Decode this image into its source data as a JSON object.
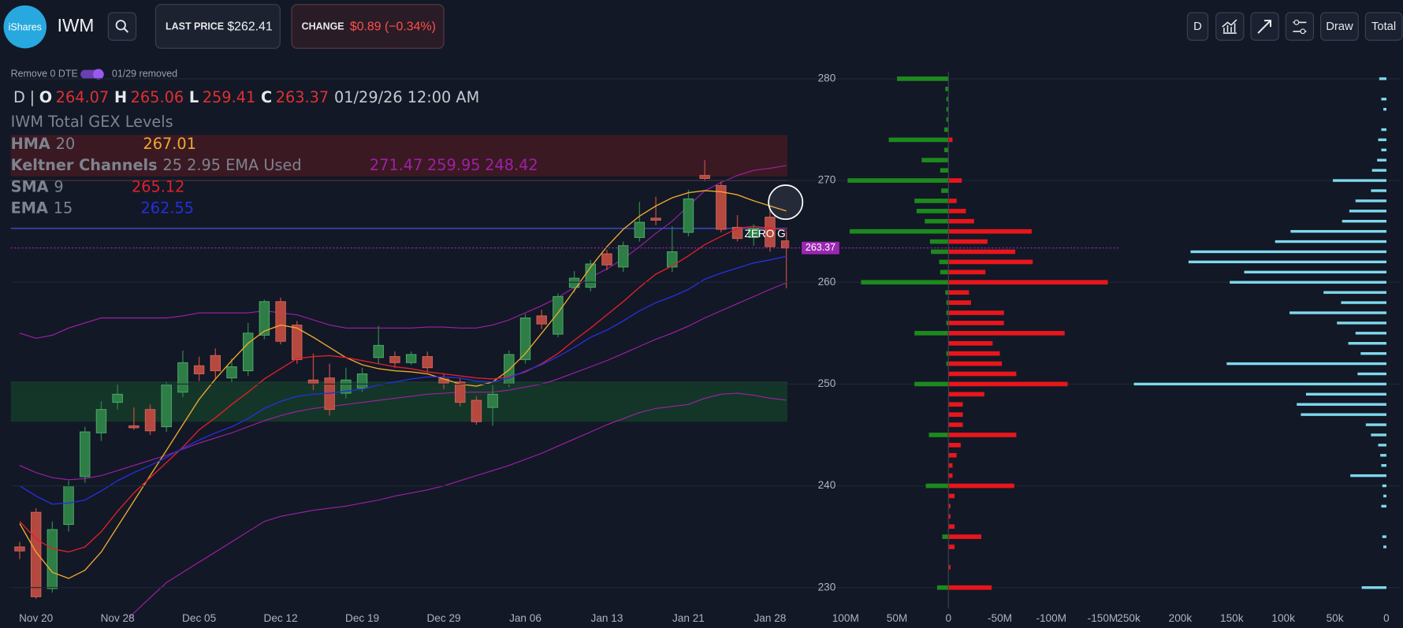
{
  "header": {
    "logo": "iShares",
    "ticker": "IWM",
    "last_price_label": "LAST PRICE",
    "last_price": "$262.41",
    "change_label": "CHANGE",
    "change": "$0.89 (−0.34%)",
    "buttons": [
      "D",
      "Draw",
      "Total"
    ]
  },
  "toggle": {
    "label": "Remove 0 DTE",
    "status": "01/29 removed"
  },
  "legend": {
    "interval": "D",
    "separator": "|",
    "open": "O",
    "high": "H",
    "low": "L",
    "close": "C",
    "datetime": "01/29/26 12:00 AM"
  },
  "chart_data": [
    {
      "type": "candlestick",
      "title": "IWM Total GEX Levels",
      "categories": [
        null,
        "Nov 20",
        null,
        null,
        null,
        null,
        "Nov 28",
        null,
        null,
        null,
        null,
        "Dec 05",
        null,
        null,
        null,
        null,
        "Dec 12",
        null,
        null,
        null,
        null,
        "Dec 19",
        null,
        null,
        null,
        null,
        "Dec 29",
        null,
        null,
        null,
        null,
        "Jan 06",
        null,
        null,
        null,
        null,
        "Jan 13",
        null,
        null,
        null,
        null,
        "Jan 21",
        null,
        null,
        null,
        null,
        "Jan 28",
        null
      ],
      "open": [
        234.0,
        237.4,
        229.9,
        236.2,
        240.9,
        245.2,
        248.2,
        245.9,
        247.5,
        245.8,
        249.2,
        251.8,
        252.8,
        250.6,
        251.3,
        254.8,
        258.1,
        255.8,
        250.4,
        250.6,
        249.1,
        249.6,
        252.6,
        252.7,
        252.1,
        252.7,
        250.5,
        250.2,
        248.4,
        247.7,
        250.0,
        252.4,
        256.7,
        254.9,
        259.5,
        259.5,
        262.8,
        261.5,
        264.4,
        266.3,
        261.5,
        264.9,
        270.5,
        269.5,
        265.4,
        264.4,
        266.4,
        264.07
      ],
      "high": [
        234.5,
        237.8,
        236.5,
        240.5,
        245.8,
        248.3,
        250.0,
        247.7,
        248.0,
        250.2,
        253.3,
        252.7,
        253.5,
        252.5,
        256.0,
        258.3,
        258.5,
        256.2,
        253.0,
        252.0,
        251.6,
        251.6,
        255.7,
        253.2,
        253.2,
        253.2,
        251.0,
        250.6,
        248.8,
        249.9,
        253.3,
        256.9,
        257.3,
        258.9,
        261.1,
        262.2,
        263.2,
        264.0,
        267.9,
        268.4,
        265.5,
        269.1,
        272.0,
        269.9,
        266.6,
        265.7,
        267.1,
        265.06
      ],
      "low": [
        232.8,
        228.9,
        229.5,
        235.5,
        240.3,
        244.4,
        247.5,
        245.5,
        245.0,
        245.3,
        248.7,
        250.3,
        250.6,
        250.2,
        250.8,
        254.4,
        253.9,
        252.0,
        249.4,
        246.9,
        248.6,
        249.2,
        252.0,
        251.6,
        251.9,
        251.2,
        249.5,
        247.8,
        246.0,
        245.9,
        249.7,
        252.0,
        255.4,
        254.6,
        259.0,
        259.1,
        261.2,
        261.0,
        264.0,
        265.6,
        261.0,
        264.5,
        269.9,
        264.9,
        264.0,
        263.6,
        263.0,
        259.41
      ],
      "close": [
        233.6,
        229.1,
        235.7,
        240.0,
        245.3,
        247.5,
        249.0,
        245.7,
        245.4,
        249.9,
        252.1,
        251.0,
        251.3,
        251.7,
        255.0,
        258.1,
        254.2,
        252.4,
        250.1,
        247.5,
        250.4,
        251.0,
        253.8,
        252.1,
        252.9,
        251.6,
        250.1,
        248.2,
        246.3,
        249.0,
        252.9,
        256.5,
        255.9,
        258.6,
        260.4,
        261.8,
        261.7,
        263.6,
        265.9,
        266.1,
        263.0,
        268.2,
        270.2,
        265.2,
        264.3,
        265.3,
        263.5,
        263.37
      ],
      "up_color": "#2e7d46",
      "down_color": "#b5483f",
      "lines": [
        {
          "name": "HMA",
          "params": "20",
          "color": "#f0a830",
          "values": [
            236.3,
            233.5,
            231.5,
            230.9,
            231.7,
            233.5,
            236,
            238.5,
            241,
            243.5,
            246,
            248.5,
            250.5,
            252.3,
            254.0,
            255.2,
            255.8,
            255.5,
            254.6,
            253.6,
            252.6,
            251.9,
            251.5,
            251.3,
            251.2,
            251.0,
            250.5,
            250.0,
            249.8,
            250.2,
            251.4,
            253.0,
            255.0,
            257.0,
            259.2,
            261.5,
            263.5,
            265.2,
            266.5,
            267.5,
            268.3,
            268.8,
            269.0,
            268.9,
            268.6,
            268.0,
            267.5,
            267.01
          ]
        },
        {
          "name": "SMA",
          "params": "9",
          "color": "#e0202a",
          "values": [
            236.5,
            234.8,
            233.8,
            233.5,
            234.0,
            235.5,
            237.5,
            239.3,
            240.8,
            242.3,
            243.8,
            245.5,
            246.7,
            248.0,
            249.2,
            250.5,
            251.5,
            252.5,
            252.7,
            252.8,
            252.6,
            252.3,
            252.0,
            251.7,
            251.5,
            251.2,
            251.0,
            250.8,
            250.6,
            250.5,
            250.7,
            251.2,
            252.0,
            253.0,
            254.3,
            255.5,
            256.8,
            258.1,
            259.5,
            260.8,
            261.6,
            262.6,
            263.7,
            264.5,
            265.3,
            265.5,
            265.3,
            265.12
          ]
        },
        {
          "name": "EMA",
          "params": "15",
          "color": "#2630d8",
          "values": [
            240.0,
            239.0,
            238.2,
            238.3,
            238.6,
            239.5,
            240.5,
            241.3,
            242.0,
            242.8,
            243.7,
            244.5,
            245.2,
            245.8,
            246.6,
            247.6,
            248.3,
            248.8,
            249.0,
            249.1,
            249.3,
            249.5,
            249.9,
            250.2,
            250.5,
            250.7,
            250.7,
            250.6,
            250.3,
            250.2,
            250.6,
            251.3,
            251.9,
            252.7,
            253.6,
            254.6,
            255.3,
            256.2,
            257.2,
            258.0,
            258.6,
            259.3,
            260.3,
            260.9,
            261.4,
            261.9,
            262.2,
            262.55
          ]
        }
      ],
      "keltner": {
        "name": "Keltner Channels",
        "params": "25 2.95 EMA Used",
        "color": "#a11fa8",
        "upper": [
          255,
          254.5,
          254.8,
          255.5,
          256,
          256.5,
          256.5,
          256.5,
          256.5,
          256.5,
          256.7,
          257,
          257,
          257,
          257,
          257.2,
          257,
          256.8,
          256.3,
          255.8,
          255.5,
          255.5,
          255.5,
          255.5,
          255.5,
          255.6,
          255.6,
          255.5,
          255.5,
          255.8,
          256.3,
          257,
          257.7,
          258.5,
          259.5,
          260.5,
          261.3,
          262.3,
          263.5,
          264.8,
          266,
          267.5,
          269,
          269.8,
          270.5,
          271,
          271.2,
          271.47
        ],
        "middle": [
          242,
          241.3,
          240.8,
          240.6,
          240.7,
          241,
          241.5,
          242,
          242.5,
          243,
          243.6,
          244.2,
          244.7,
          245.2,
          245.8,
          246.4,
          246.9,
          247.3,
          247.6,
          247.8,
          248,
          248.2,
          248.4,
          248.6,
          248.8,
          249,
          249.1,
          249.2,
          249.2,
          249.2,
          249.4,
          249.7,
          250,
          250.5,
          251.1,
          251.7,
          252.3,
          253,
          253.7,
          254.4,
          255,
          255.7,
          256.5,
          257.2,
          257.9,
          258.6,
          259.3,
          259.95
        ],
        "lower": [
          224,
          223.5,
          223,
          223,
          223.5,
          224.5,
          226,
          227.5,
          229,
          230.5,
          231.5,
          232.5,
          233.5,
          234.5,
          235.5,
          236.5,
          237,
          237.3,
          237.6,
          237.8,
          238,
          238.3,
          238.6,
          239,
          239.3,
          239.6,
          240,
          240.5,
          241,
          241.5,
          242,
          242.6,
          243.2,
          243.9,
          244.6,
          245.3,
          246,
          246.6,
          247.2,
          247.6,
          247.8,
          248,
          248.6,
          249,
          249.1,
          248.9,
          248.6,
          248.42
        ]
      },
      "levels": [
        {
          "value": 270,
          "color": "#d84a3a"
        },
        {
          "value": 265.3,
          "color": "#3b50c8"
        }
      ],
      "zones": [
        {
          "from": 270.4,
          "to": 274.4,
          "color": "#4a1a22"
        },
        {
          "from": 246.3,
          "to": 250.2,
          "color": "#15402a"
        }
      ],
      "annotation": {
        "text": "ZERO G",
        "value": 264.7
      },
      "tag_color": "#9b27b0",
      "ylim": [
        227,
        281
      ],
      "yticks": [
        230,
        240,
        250,
        260,
        270,
        280
      ],
      "grid": true
    },
    {
      "type": "bar",
      "orientation": "horizontal",
      "y": [
        280,
        279,
        278,
        277,
        276,
        275,
        274,
        273,
        272,
        271,
        270,
        269,
        268,
        267,
        266,
        265,
        264,
        263,
        262,
        261,
        260,
        259,
        258,
        257,
        256,
        255,
        254,
        253,
        252,
        251,
        250,
        249,
        248,
        247,
        246,
        245,
        244,
        243,
        242,
        241,
        240,
        239,
        238,
        237,
        236,
        235,
        234,
        233,
        232,
        231,
        230,
        229
      ],
      "series": [
        {
          "color": "#1d8a1d",
          "values": [
            50000000.0,
            3000000.0,
            2000000.0,
            2000000.0,
            2000000.0,
            4000000.0,
            58000000.0,
            4000000.0,
            26000000.0,
            8000000.0,
            98000000.0,
            7000000.0,
            33000000.0,
            31000000.0,
            23000000.0,
            96000000.0,
            18000000.0,
            17000000.0,
            9000000.0,
            8000000.0,
            85000000.0,
            3000000.0,
            2000000.0,
            2000000.0,
            2000000.0,
            33000000.0,
            0,
            2000000.0,
            2000000.0,
            0,
            33000000.0,
            0,
            0,
            0,
            0,
            19000000.0,
            0,
            0,
            0,
            0,
            22000000.0,
            0,
            0,
            0,
            0,
            6000000.0,
            0,
            0,
            0,
            0,
            11000000.0,
            0
          ]
        },
        {
          "color": "#e8161b",
          "values": [
            0,
            0,
            0,
            0,
            0,
            0,
            -4000000.0,
            0,
            0,
            0,
            -13000000.0,
            0,
            -8000000.0,
            -17000000.0,
            -25000000.0,
            -81000000.0,
            -38000000.0,
            -65000000.0,
            -82000000.0,
            -36000000.0,
            -155000000.0,
            -20000000.0,
            -22000000.0,
            -54000000.0,
            -54000000.0,
            -113000000.0,
            -43000000.0,
            -50000000.0,
            -52000000.0,
            -66000000.0,
            -116000000.0,
            -35000000.0,
            -14000000.0,
            -14000000.0,
            -14000000.0,
            -66000000.0,
            -12000000.0,
            -8000000.0,
            -4000000.0,
            -4000000.0,
            -64000000.0,
            -6000000.0,
            -2000000.0,
            -2000000.0,
            -6000000.0,
            -32000000.0,
            -6000000.0,
            0,
            -2000000.0,
            0,
            -42000000.0,
            0
          ]
        }
      ],
      "xlim": [
        100000000.0,
        -161000000.0
      ],
      "xticks": [
        {
          "value": 100000000.0,
          "label": "100M"
        },
        {
          "value": 50000000.0,
          "label": "50M"
        },
        0,
        {
          "value": -50000000.0,
          "label": "-50M"
        },
        {
          "value": -100000000.0,
          "label": "-100M"
        },
        {
          "value": -150000000.0,
          "label": "-150M"
        }
      ],
      "ylim": [
        227,
        281
      ]
    },
    {
      "type": "bar",
      "orientation": "horizontal",
      "y": [
        280,
        279,
        278,
        277,
        276,
        275,
        274,
        273,
        272,
        271,
        270,
        269,
        268,
        267,
        266,
        265,
        264,
        263,
        262,
        261,
        260,
        259,
        258,
        257,
        256,
        255,
        254,
        253,
        252,
        251,
        250,
        249,
        248,
        247,
        246,
        245,
        244,
        243,
        242,
        241,
        240,
        239,
        238,
        237,
        236,
        235,
        234,
        233,
        232,
        231,
        230,
        229
      ],
      "color": "#7fd8ec",
      "values": [
        7000,
        0,
        5000,
        3000,
        0,
        5000,
        8000,
        5000,
        9000,
        14000,
        52000,
        15000,
        30000,
        36000,
        43000,
        93000,
        108000,
        190000,
        192000,
        138000,
        152000,
        61000,
        44000,
        94000,
        48000,
        30000,
        37000,
        25000,
        155000,
        28000,
        245000,
        78000,
        87000,
        83000,
        20000,
        15000,
        8000,
        6000,
        5000,
        35000,
        4000,
        3000,
        5000,
        0,
        0,
        4000,
        3000,
        0,
        0,
        0,
        24000,
        0
      ],
      "xlim": [
        253000,
        -10000
      ],
      "xticks": [
        {
          "value": 250000,
          "label": "250k"
        },
        {
          "value": 200000,
          "label": "200k"
        },
        {
          "value": 150000,
          "label": "150k"
        },
        {
          "value": 100000,
          "label": "100k"
        },
        {
          "value": 50000,
          "label": "50k"
        },
        0
      ],
      "ylim": [
        227,
        281
      ]
    }
  ]
}
